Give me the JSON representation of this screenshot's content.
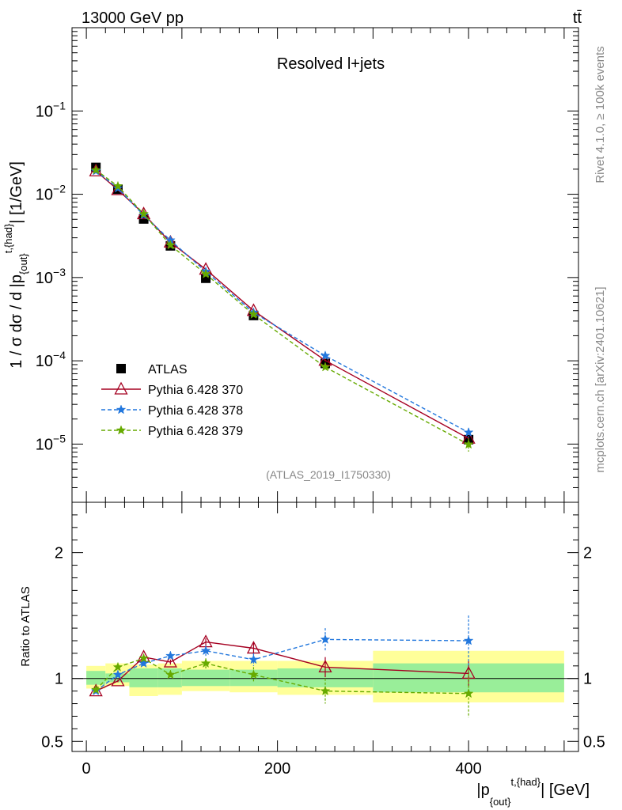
{
  "header": {
    "energy": "13000 GeV pp",
    "process": "tt̄"
  },
  "main_panel": {
    "title": "Resolved l+jets",
    "analysis_id": "(ATLAS_2019_I1750330)"
  },
  "side_labels": {
    "rivet": "Rivet 4.1.0, ≥ 100k events",
    "mcplots": "mcplots.cern.ch [arXiv:2401.10621]"
  },
  "chart_data": [
    {
      "type": "scatter",
      "role": "main",
      "ylabel": "1 / σ dσ / d |p_{out}^{t,{had}}| [1/GeV]",
      "yscale": "log",
      "ylim": [
        2e-06,
        1
      ],
      "xlim": [
        -15,
        515
      ],
      "ytick_labels": [
        {
          "value": 1e-05,
          "base": "10",
          "exp": "−5"
        },
        {
          "value": 0.0001,
          "base": "10",
          "exp": "−4"
        },
        {
          "value": 0.001,
          "base": "10",
          "exp": "−3"
        },
        {
          "value": 0.01,
          "base": "10",
          "exp": "−2"
        },
        {
          "value": 0.1,
          "base": "10",
          "exp": "−1"
        }
      ],
      "x": [
        10,
        33,
        60,
        88,
        125,
        175,
        250,
        400
      ],
      "series": [
        {
          "name": "ATLAS",
          "style": "data",
          "color": "#000000",
          "values": [
            0.021,
            0.0115,
            0.00505,
            0.0024,
            0.00098,
            0.00035,
            9.3e-05,
            1.13e-05
          ]
        },
        {
          "name": "Pythia 6.428 370",
          "style": "solid-triangle",
          "color": "#a50021",
          "values": [
            0.019,
            0.0113,
            0.0058,
            0.00265,
            0.00125,
            0.0004,
            0.000101,
            1.17e-05
          ],
          "errors": [
            0.0002,
            0.0001,
            5e-05,
            2e-05,
            2e-05,
            8e-06,
            3e-06,
            5e-07
          ]
        },
        {
          "name": "Pythia 6.428 378",
          "style": "dashed-star",
          "color": "#2277dd",
          "values": [
            0.019,
            0.0118,
            0.0056,
            0.0028,
            0.00118,
            0.00038,
            0.000115,
            1.38e-05
          ],
          "errors": [
            0.0002,
            0.0001,
            5e-05,
            3e-05,
            2e-05,
            1e-05,
            6e-06,
            1.8e-06
          ]
        },
        {
          "name": "Pythia 6.428 379",
          "style": "dashed-star",
          "color": "#66aa00",
          "values": [
            0.0195,
            0.0125,
            0.0058,
            0.00245,
            0.0011,
            0.00036,
            8.4e-05,
            9.9e-06
          ],
          "errors": [
            0.0002,
            0.0001,
            5e-05,
            2e-05,
            2e-05,
            1e-05,
            4e-06,
            1.8e-06
          ]
        }
      ]
    },
    {
      "type": "scatter",
      "role": "ratio",
      "ylabel": "Ratio to ATLAS",
      "xlabel": "|p_{out}^{t,{had}}| [GeV]",
      "ylim": [
        0.42,
        2.4
      ],
      "xlim": [
        -15,
        515
      ],
      "ytick_labels": [
        {
          "value": 0.5,
          "label": "0.5"
        },
        {
          "value": 1,
          "label": "1"
        },
        {
          "value": 2,
          "label": "2"
        }
      ],
      "xtick_labels": [
        {
          "value": 0,
          "label": "0"
        },
        {
          "value": 200,
          "label": "200"
        },
        {
          "value": 400,
          "label": "400"
        }
      ],
      "x": [
        10,
        33,
        60,
        88,
        125,
        175,
        250,
        400
      ],
      "bins": [
        [
          0,
          20
        ],
        [
          20,
          45
        ],
        [
          45,
          75
        ],
        [
          75,
          100
        ],
        [
          100,
          150
        ],
        [
          150,
          200
        ],
        [
          200,
          300
        ],
        [
          300,
          500
        ]
      ],
      "band_stat": [
        [
          0.95,
          1.06
        ],
        [
          0.97,
          1.04
        ],
        [
          0.93,
          1.08
        ],
        [
          0.93,
          1.08
        ],
        [
          0.94,
          1.07
        ],
        [
          0.94,
          1.07
        ],
        [
          0.93,
          1.08
        ],
        [
          0.89,
          1.12
        ]
      ],
      "band_total": [
        [
          0.92,
          1.1
        ],
        [
          0.94,
          1.12
        ],
        [
          0.86,
          1.11
        ],
        [
          0.87,
          1.12
        ],
        [
          0.9,
          1.14
        ],
        [
          0.89,
          1.14
        ],
        [
          0.87,
          1.14
        ],
        [
          0.81,
          1.22
        ]
      ],
      "series": [
        {
          "name": "Pythia 6.428 370",
          "style": "solid-triangle",
          "color": "#a50021",
          "values": [
            0.9,
            0.98,
            1.17,
            1.13,
            1.29,
            1.24,
            1.09,
            1.04
          ],
          "errors": [
            0.01,
            0.01,
            0.01,
            0.02,
            0.03,
            0.05,
            0.08,
            0.1
          ]
        },
        {
          "name": "Pythia 6.428 378",
          "style": "dashed-star",
          "color": "#2277dd",
          "values": [
            0.9,
            1.03,
            1.12,
            1.18,
            1.22,
            1.15,
            1.31,
            1.3
          ],
          "errors": [
            0.01,
            0.01,
            0.02,
            0.03,
            0.04,
            0.05,
            0.09,
            0.2
          ]
        },
        {
          "name": "Pythia 6.428 379",
          "style": "dashed-star",
          "color": "#66aa00",
          "values": [
            0.91,
            1.09,
            1.16,
            1.03,
            1.12,
            1.03,
            0.9,
            0.88
          ],
          "errors": [
            0.01,
            0.01,
            0.02,
            0.03,
            0.04,
            0.06,
            0.1,
            0.19
          ]
        }
      ]
    }
  ]
}
